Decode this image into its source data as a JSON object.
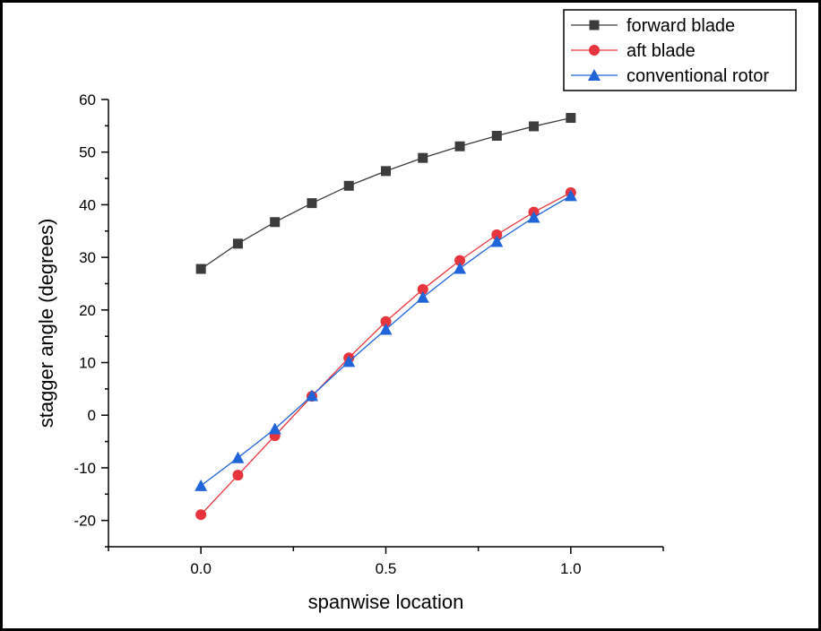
{
  "chart_data": {
    "type": "line",
    "xlabel": "spanwise location",
    "ylabel": "stagger angle (degrees)",
    "xlim": [
      -0.25,
      1.25
    ],
    "ylim": [
      -25,
      60
    ],
    "xticks": [
      0.0,
      0.5,
      1.0
    ],
    "xtick_labels": [
      "0.0",
      "0.5",
      "1.0"
    ],
    "yticks": [
      -20,
      -10,
      0,
      10,
      20,
      30,
      40,
      50,
      60
    ],
    "ytick_labels": [
      "-20",
      "-10",
      "0",
      "10",
      "20",
      "30",
      "40",
      "50",
      "60"
    ],
    "grid": false,
    "legend_position": "top-right",
    "x": [
      0.0,
      0.1,
      0.2,
      0.3,
      0.4,
      0.5,
      0.6,
      0.7,
      0.8,
      0.9,
      1.0
    ],
    "series": [
      {
        "name": "forward blade",
        "marker": "square",
        "color": "#3c3c3c",
        "values": [
          27.8,
          32.6,
          36.7,
          40.3,
          43.6,
          46.4,
          48.9,
          51.1,
          53.1,
          54.9,
          56.5
        ]
      },
      {
        "name": "aft blade",
        "marker": "circle",
        "color": "#e8353d",
        "values": [
          -18.9,
          -11.4,
          -3.9,
          3.6,
          10.9,
          17.8,
          23.9,
          29.4,
          34.3,
          38.6,
          42.3
        ]
      },
      {
        "name": "conventional rotor",
        "marker": "triangle",
        "color": "#1f64d8",
        "values": [
          -13.4,
          -8.1,
          -2.6,
          3.7,
          10.2,
          16.3,
          22.4,
          27.9,
          33.0,
          37.6,
          41.7
        ]
      }
    ]
  }
}
